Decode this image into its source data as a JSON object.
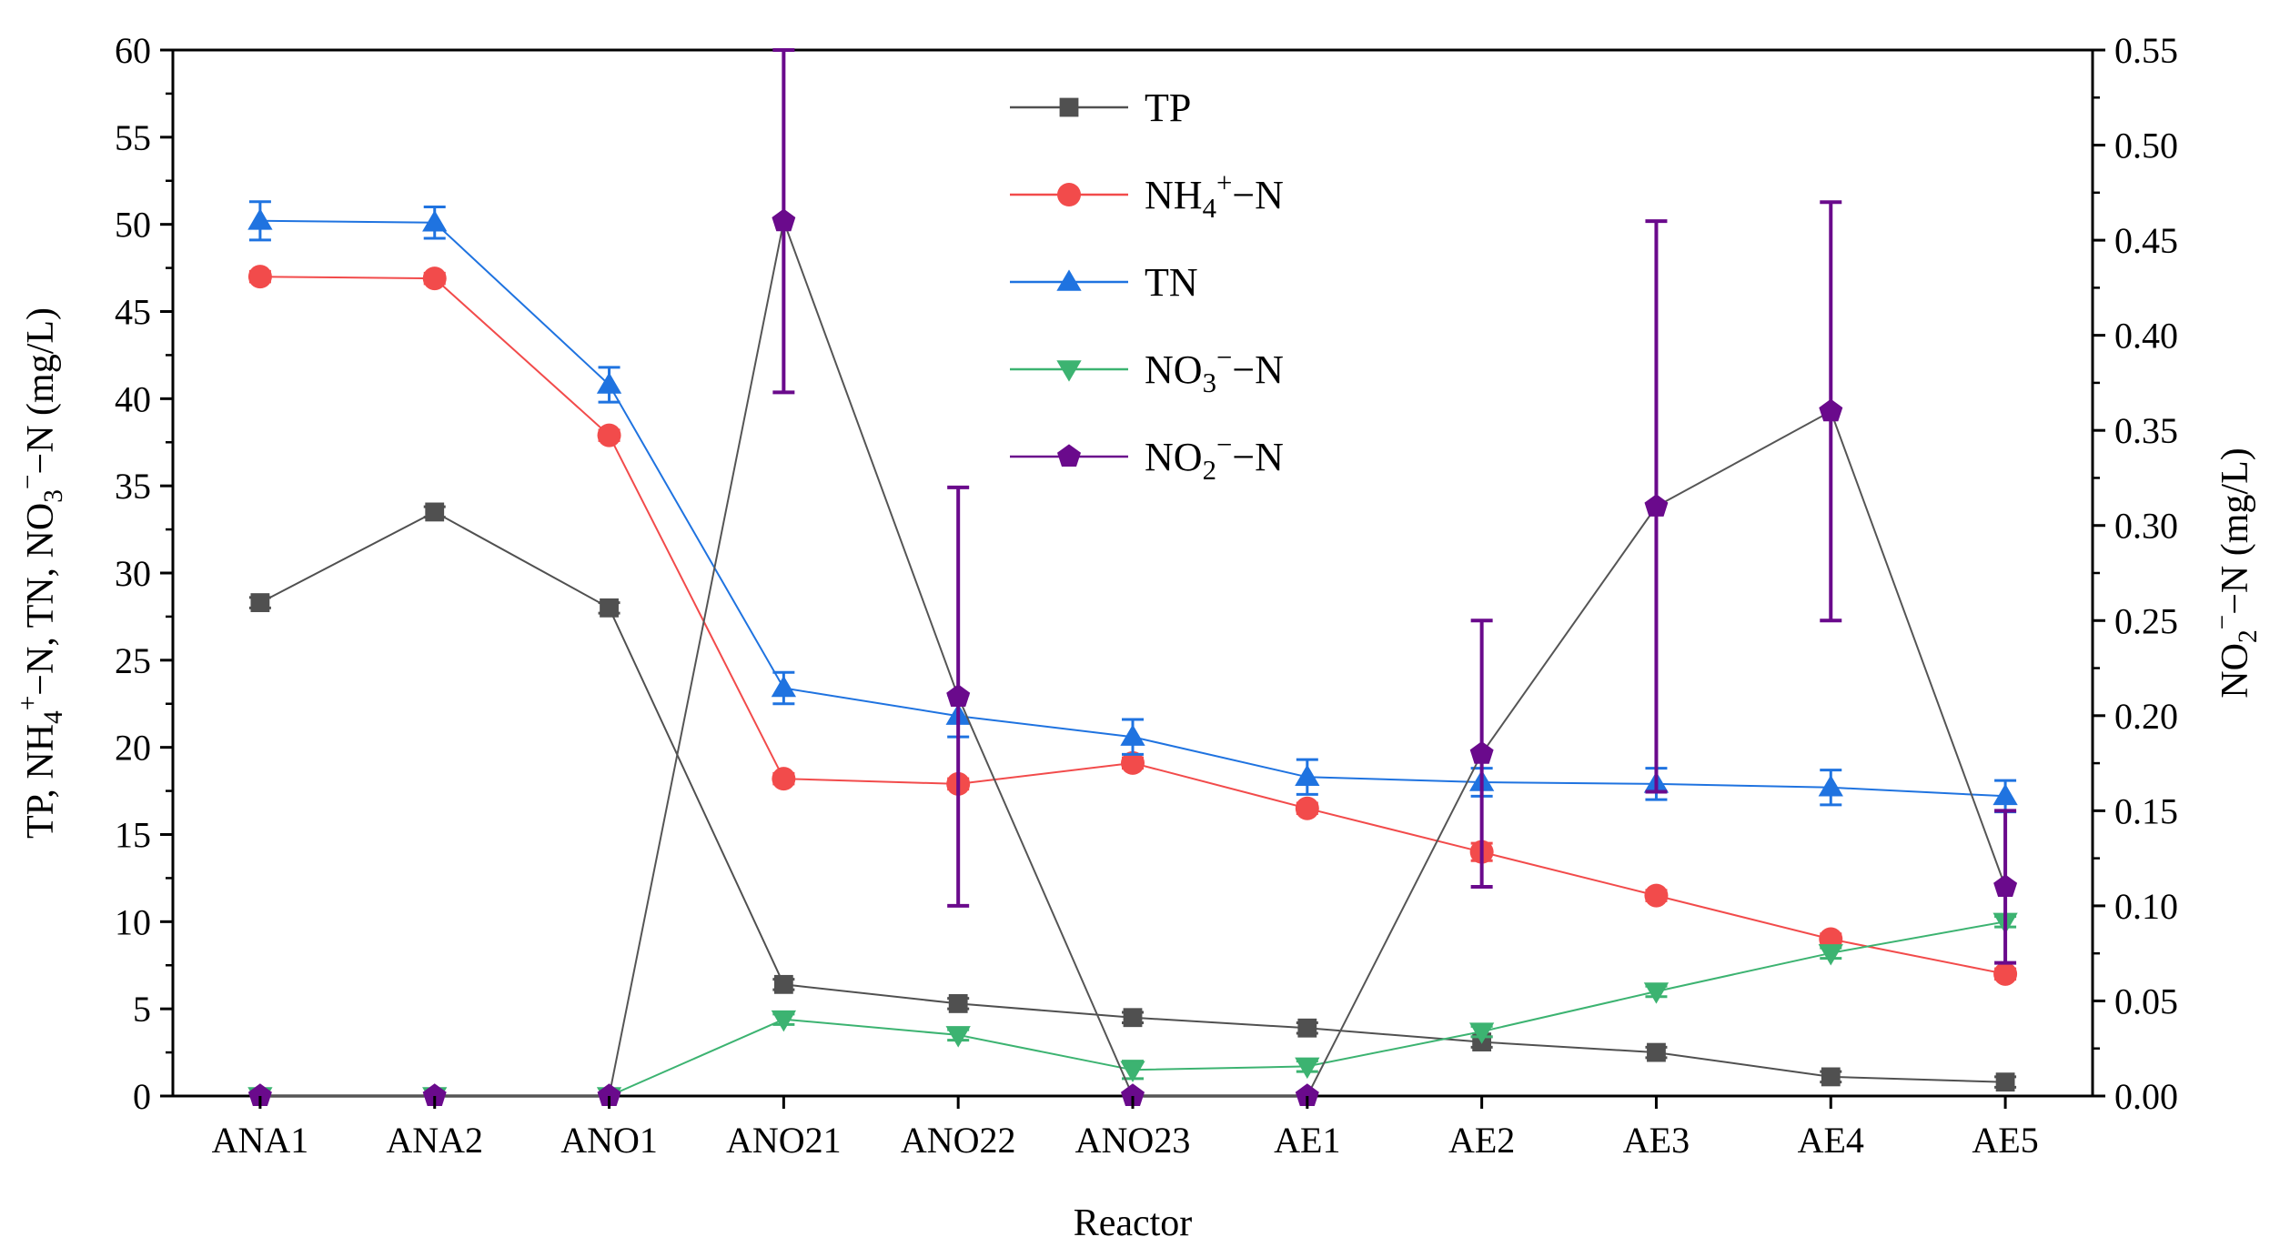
{
  "chart_data": {
    "type": "line",
    "title": "",
    "xlabel": "Reactor",
    "ylabel": "TP, NH4+−N, TN, NO3−−N (mg/L)",
    "ylabel_parts": [
      "TP, NH",
      "4",
      "+",
      "−N, TN, NO",
      "3",
      "−",
      "−N (mg/L)"
    ],
    "y2label": "NO2−−N (mg/L)",
    "y2label_parts": [
      "NO",
      "2",
      "−",
      "−N (mg/L)"
    ],
    "ylim": [
      0,
      60
    ],
    "y2lim": [
      0,
      0.55
    ],
    "yticks": [
      "0",
      "5",
      "10",
      "15",
      "20",
      "25",
      "30",
      "35",
      "40",
      "45",
      "50",
      "55",
      "60"
    ],
    "y2ticks": [
      "0.00",
      "0.05",
      "0.10",
      "0.15",
      "0.20",
      "0.25",
      "0.30",
      "0.35",
      "0.40",
      "0.45",
      "0.50",
      "0.55"
    ],
    "categories": [
      "ANA1",
      "ANA2",
      "ANO1",
      "ANO21",
      "ANO22",
      "ANO23",
      "AE1",
      "AE2",
      "AE3",
      "AE4",
      "AE5"
    ],
    "legend_position": "top-center",
    "series": [
      {
        "name": "TP",
        "legend_parts": [
          "TP"
        ],
        "axis": "left",
        "color": "#505050",
        "marker": "square",
        "values": [
          28.3,
          33.5,
          28.0,
          6.4,
          5.3,
          4.5,
          3.9,
          3.1,
          2.5,
          1.1,
          0.8
        ],
        "errors": [
          0.3,
          0.3,
          0.3,
          0.3,
          0.3,
          0.3,
          0.3,
          0.3,
          0.3,
          0.3,
          0.3
        ]
      },
      {
        "name": "NH4+−N",
        "legend_parts": [
          "NH",
          "4",
          "+",
          "−N"
        ],
        "axis": "left",
        "color": "#f24b4b",
        "marker": "circle",
        "values": [
          47.0,
          46.9,
          37.9,
          18.2,
          17.9,
          19.1,
          16.5,
          14.0,
          11.5,
          9.0,
          7.0
        ],
        "errors": [
          0.3,
          0.3,
          0.3,
          0.3,
          0.3,
          0.3,
          0.3,
          0.5,
          0.3,
          0.3,
          0.3
        ]
      },
      {
        "name": "TN",
        "legend_parts": [
          "TN"
        ],
        "axis": "left",
        "color": "#1f73e0",
        "marker": "triangle-up",
        "values": [
          50.2,
          50.1,
          40.8,
          23.4,
          21.8,
          20.6,
          18.3,
          18.0,
          17.9,
          17.7,
          17.2
        ],
        "errors": [
          1.1,
          0.9,
          1.0,
          0.9,
          1.2,
          1.0,
          1.0,
          0.8,
          0.9,
          1.0,
          0.9
        ]
      },
      {
        "name": "NO3−−N",
        "legend_parts": [
          "NO",
          "3",
          "−",
          "−N"
        ],
        "axis": "left",
        "color": "#3cb371",
        "marker": "triangle-down",
        "values": [
          0.0,
          0.0,
          0.0,
          4.4,
          3.5,
          1.5,
          1.7,
          3.7,
          6.0,
          8.2,
          10.0
        ],
        "errors": [
          0.0,
          0.0,
          0.0,
          0.3,
          0.3,
          0.5,
          0.3,
          0.3,
          0.3,
          0.3,
          0.3
        ]
      },
      {
        "name": "NO2−−N",
        "legend_parts": [
          "NO",
          "2",
          "−",
          "−N"
        ],
        "axis": "right",
        "color": "#6a0a8c",
        "line_color": "#555555",
        "marker": "pentagon",
        "values": [
          0.0,
          0.0,
          0.0,
          0.46,
          0.21,
          0.0,
          0.0,
          0.18,
          0.31,
          0.36,
          0.11
        ],
        "errors": [
          0.0,
          0.0,
          0.0,
          0.09,
          0.11,
          0.0,
          0.0,
          0.07,
          0.15,
          0.11,
          0.04
        ]
      }
    ]
  }
}
